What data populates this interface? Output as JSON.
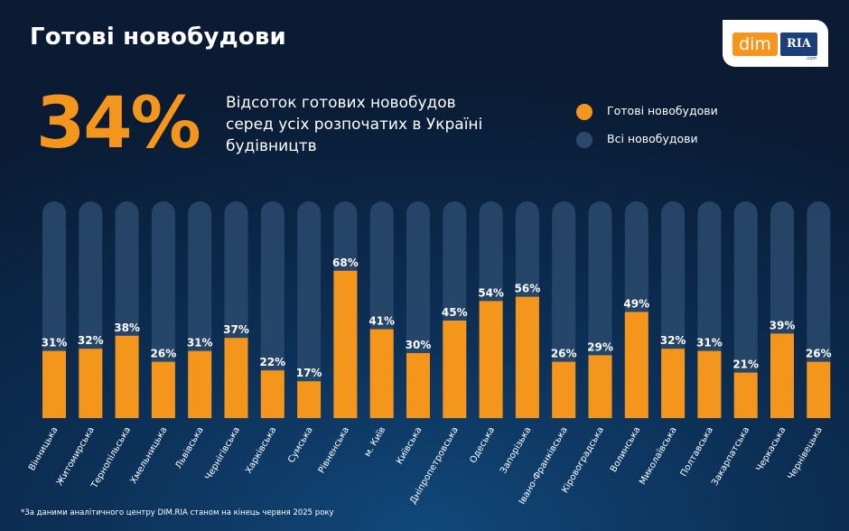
{
  "header": {
    "title": "Готові новобудови"
  },
  "logo": {
    "dim": "dim",
    "ria": "RIA",
    "com": ".com"
  },
  "headline": {
    "value": "34%",
    "description": [
      "Відсоток готових новобудов",
      "серед усіх розпочатих в Україні",
      "будівництв"
    ]
  },
  "legend": [
    {
      "label": "Готові новобудови",
      "color": "#f5961c"
    },
    {
      "label": "Всі новобудови",
      "color": "#2a4a6d"
    }
  ],
  "footnote": "*За даними аналітичного центру DIM.RIA станом на кінець червня 2025 року",
  "chart_data": {
    "type": "bar",
    "title": "Готові новобудови",
    "categories": [
      "Вінницька",
      "Житомирська",
      "Тернопільська",
      "Хмельницька",
      "Львівська",
      "Чернігівська",
      "Харківська",
      "Сумська",
      "Рівненська",
      "м. Київ",
      "Київська",
      "Дніпропетровська",
      "Одеська",
      "Запорізька",
      "Івано-Франківська",
      "Кіровоградська",
      "Волинська",
      "Миколаївська",
      "Полтавська",
      "Закарпатська",
      "Черкаська",
      "Чернівецька"
    ],
    "series": [
      {
        "name": "Готові новобудови",
        "values": [
          31,
          32,
          38,
          26,
          31,
          37,
          22,
          17,
          68,
          41,
          30,
          45,
          54,
          56,
          26,
          29,
          49,
          32,
          31,
          21,
          39,
          26
        ]
      },
      {
        "name": "Всі новобудови",
        "values": [
          100,
          100,
          100,
          100,
          100,
          100,
          100,
          100,
          100,
          100,
          100,
          100,
          100,
          100,
          100,
          100,
          100,
          100,
          100,
          100,
          100,
          100
        ]
      }
    ],
    "value_labels": [
      "31%",
      "32%",
      "38%",
      "26%",
      "31%",
      "37%",
      "22%",
      "17%",
      "68%",
      "41%",
      "30%",
      "45%",
      "54%",
      "56%",
      "26%",
      "29%",
      "49%",
      "32%",
      "31%",
      "21%",
      "39%",
      "26%"
    ],
    "ylim": [
      0,
      100
    ],
    "unit": "%",
    "colors": {
      "ready": "#f5961c",
      "all": "#2a4a6d"
    }
  }
}
